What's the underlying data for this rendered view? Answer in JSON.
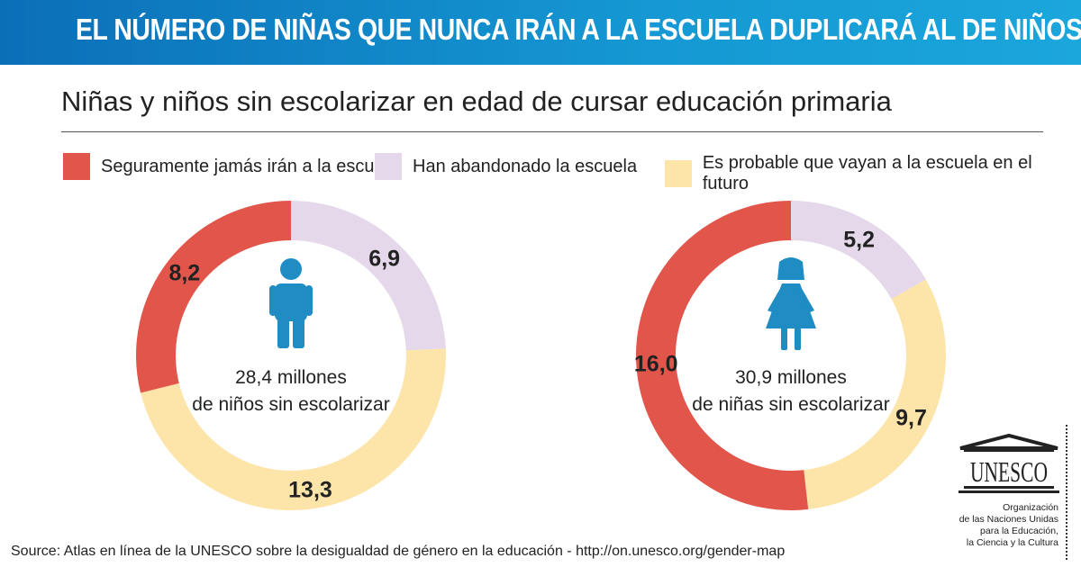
{
  "header": {
    "title": "EL NÚMERO DE NIÑAS QUE NUNCA IRÁN A LA ESCUELA DUPLICARÁ AL DE NIÑOS"
  },
  "chart_data": [
    {
      "type": "pie",
      "subtype": "donut",
      "title": "Niñas y niños sin escolarizar en edad de cursar educación primaria",
      "center_label": [
        "28,4 millones",
        "de niños sin escolarizar"
      ],
      "icon": "boy-icon",
      "slices": [
        {
          "name": "Han abandonado la escuela",
          "value": 6.9,
          "label": "6,9",
          "color": "#e5d8ea"
        },
        {
          "name": "Es probable que vayan a la escuela en el futuro",
          "value": 13.3,
          "label": "13,3",
          "color": "#fde4a8"
        },
        {
          "name": "Seguramente jamás irán a la escuela",
          "value": 8.2,
          "label": "8,2",
          "color": "#e2554b"
        }
      ]
    },
    {
      "type": "pie",
      "subtype": "donut",
      "center_label": [
        "30,9 millones",
        "de niñas sin escolarizar"
      ],
      "icon": "girl-icon",
      "slices": [
        {
          "name": "Han abandonado la escuela",
          "value": 5.2,
          "label": "5,2",
          "color": "#e5d8ea"
        },
        {
          "name": "Es probable que vayan a la escuela en el futuro",
          "value": 9.7,
          "label": "9,7",
          "color": "#fde4a8"
        },
        {
          "name": "Seguramente jamás irán a la escuela",
          "value": 16.0,
          "label": "16,0",
          "color": "#e2554b"
        }
      ]
    }
  ],
  "legend": [
    {
      "label": "Seguramente jamás irán a la escuela",
      "color": "#e2554b"
    },
    {
      "label": "Han abandonado la escuela",
      "color": "#e5d8ea"
    },
    {
      "label": "Es probable que vayan a la escuela en el futuro",
      "color": "#fde4a8"
    }
  ],
  "subtitle": "Niñas y niños sin escolarizar en edad de cursar educación primaria",
  "source": "Source: Atlas en línea de la UNESCO sobre la desigualdad de género en la educación - http://on.unesco.org/gender-map",
  "logo": {
    "text": "UNESCO",
    "org": [
      "Organización",
      "de las Naciones Unidas",
      "para la Educación,",
      "la Ciencia y la Cultura"
    ]
  },
  "icon_color": "#1f8cc4"
}
